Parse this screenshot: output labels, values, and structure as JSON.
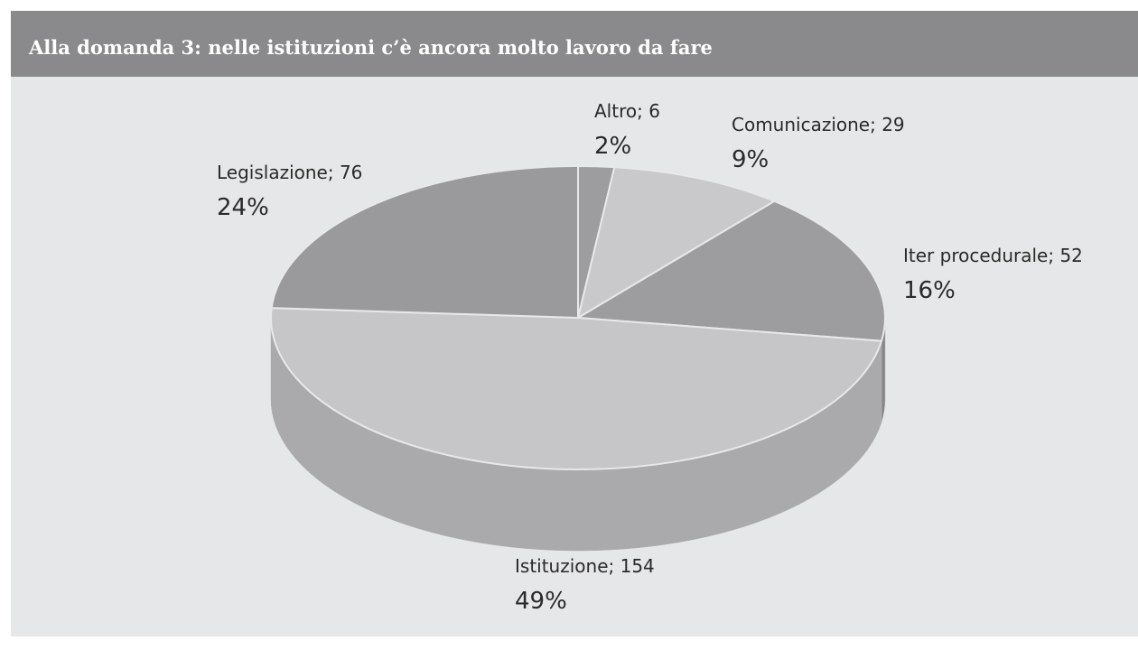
{
  "chart_data": {
    "type": "pie3d",
    "title": "Alla domanda 3: nelle istituzioni c’è ancora molto lavoro da fare",
    "value_labels": [
      "Altro; 6",
      "Comunicazione; 29",
      "Iter procedurale; 52",
      "Istituzione; 154",
      "Legislazione; 76"
    ],
    "values": [
      6,
      29,
      52,
      154,
      76
    ],
    "percentages": [
      2,
      9,
      16,
      49,
      24
    ],
    "percentage_labels": [
      "2%",
      "9%",
      "16%",
      "49%",
      "24%"
    ],
    "colors": [
      "#9d9d9f",
      "#c9c9cb",
      "#9d9d9f",
      "#c6c6c8",
      "#9a9a9c"
    ]
  }
}
